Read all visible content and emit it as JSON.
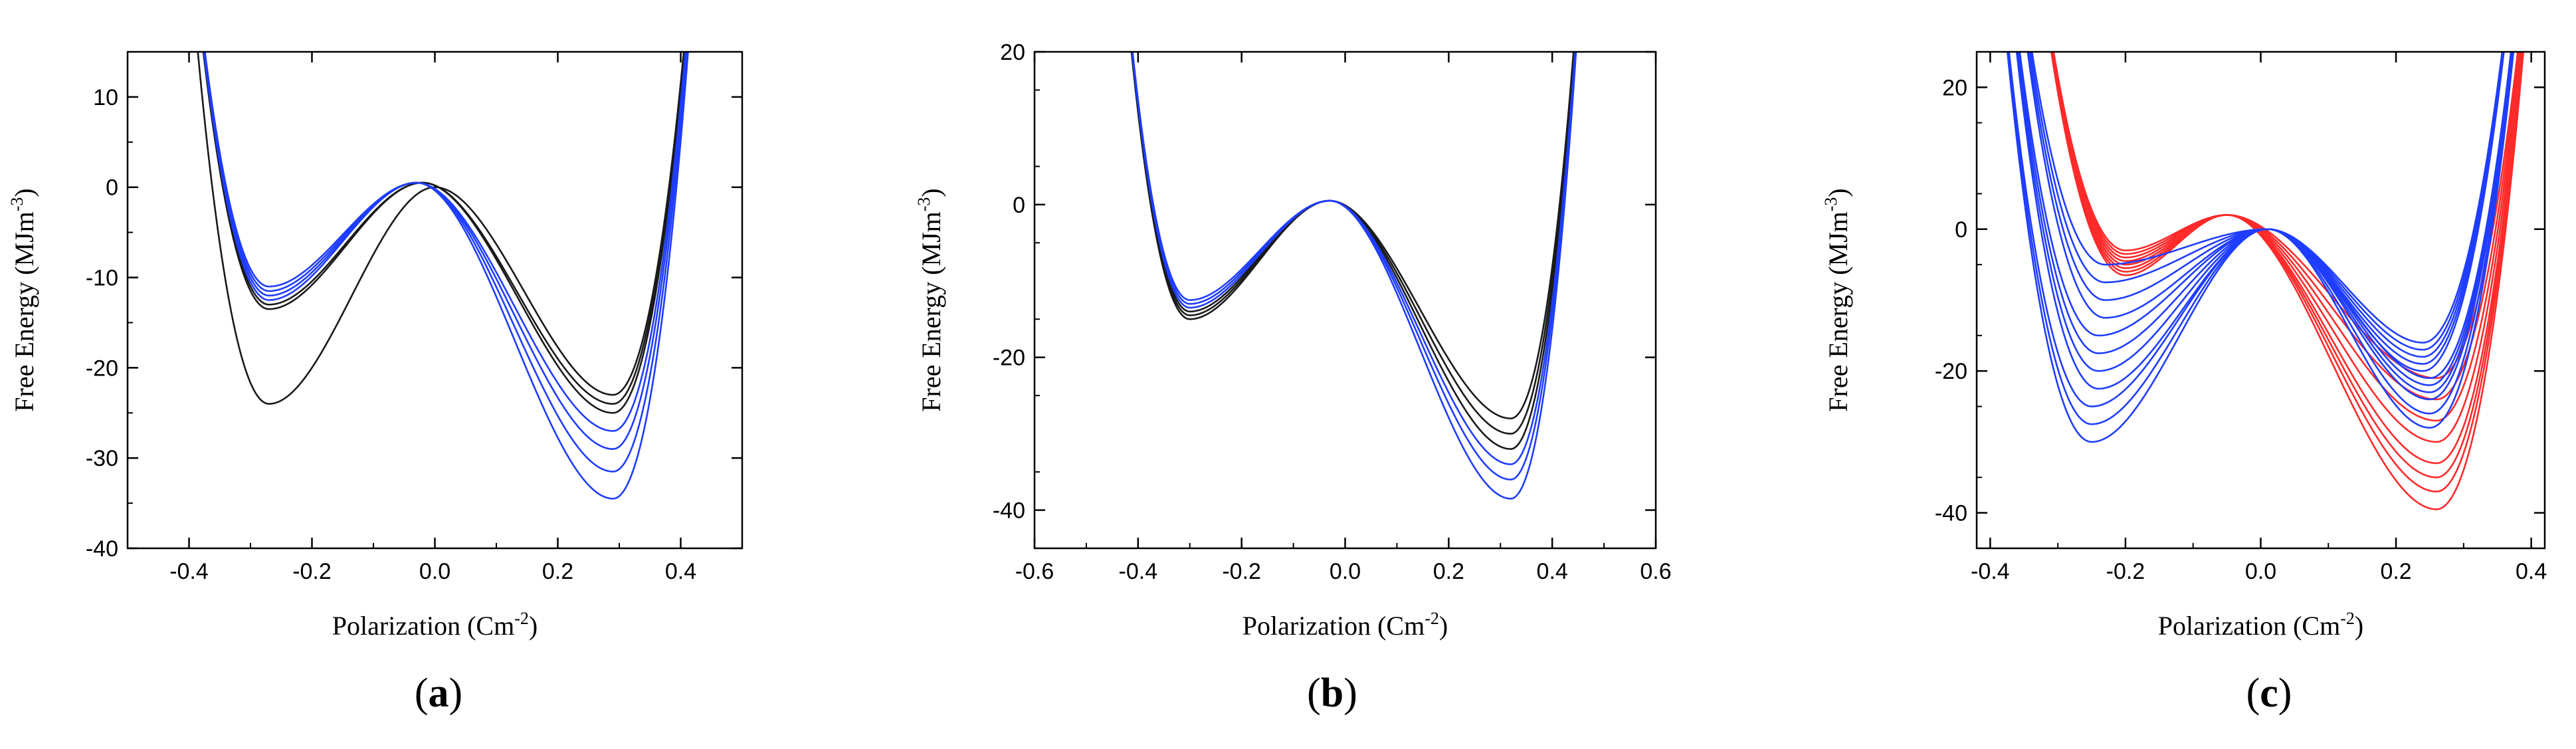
{
  "figure": {
    "panels": [
      "a",
      "b",
      "c"
    ]
  },
  "chart_data": [
    {
      "type": "line",
      "panel_label": "a",
      "xlabel": "Polarization (Cm",
      "xlabel_sup": "-2",
      "xlabel_close": ")",
      "ylabel": "Free Energy (MJm",
      "ylabel_sup": "-3",
      "ylabel_close": ")",
      "xlim": [
        -0.5,
        0.5
      ],
      "ylim": [
        -40,
        15
      ],
      "xticks": [
        -0.4,
        -0.2,
        0.0,
        0.2,
        0.4
      ],
      "xtick_labels": [
        "-0.4",
        "-0.2",
        "0.0",
        "0.2",
        "0.4"
      ],
      "yticks": [
        10,
        0,
        -10,
        -20,
        -30,
        -40
      ],
      "ytick_labels": [
        "10",
        "0",
        "-10",
        "-20",
        "-30",
        "-40"
      ],
      "colors": {
        "dark": "#1a1a1a",
        "blue": "#1f3dff"
      },
      "model": "landau_quartic",
      "series": [
        {
          "name": "curve-1",
          "color_key": "dark",
          "left_min": [
            -0.27,
            -24
          ],
          "right_min": [
            0.29,
            -23
          ],
          "barrier": [
            0.0,
            0
          ]
        },
        {
          "name": "curve-2",
          "color_key": "dark",
          "left_min": [
            -0.27,
            -13.5
          ],
          "right_min": [
            0.29,
            -24
          ],
          "barrier": [
            -0.02,
            0.5
          ]
        },
        {
          "name": "curve-3",
          "color_key": "dark",
          "left_min": [
            -0.27,
            -13
          ],
          "right_min": [
            0.29,
            -25
          ],
          "barrier": [
            -0.02,
            0.5
          ]
        },
        {
          "name": "curve-4",
          "color_key": "blue",
          "left_min": [
            -0.27,
            -12.5
          ],
          "right_min": [
            0.29,
            -27
          ],
          "barrier": [
            -0.03,
            0.5
          ]
        },
        {
          "name": "curve-5",
          "color_key": "blue",
          "left_min": [
            -0.27,
            -12
          ],
          "right_min": [
            0.29,
            -29
          ],
          "barrier": [
            -0.03,
            0.5
          ]
        },
        {
          "name": "curve-6",
          "color_key": "blue",
          "left_min": [
            -0.27,
            -11.5
          ],
          "right_min": [
            0.29,
            -31.5
          ],
          "barrier": [
            -0.03,
            0.5
          ]
        },
        {
          "name": "curve-7",
          "color_key": "blue",
          "left_min": [
            -0.27,
            -11
          ],
          "right_min": [
            0.29,
            -34.5
          ],
          "barrier": [
            -0.03,
            0.5
          ]
        }
      ]
    },
    {
      "type": "line",
      "panel_label": "b",
      "xlabel": "Polarization (Cm",
      "xlabel_sup": "-2",
      "xlabel_close": ")",
      "ylabel": "Free Energy (MJm",
      "ylabel_sup": "-3",
      "ylabel_close": ")",
      "xlim": [
        -0.6,
        0.6
      ],
      "ylim": [
        -45,
        20
      ],
      "xticks": [
        -0.6,
        -0.4,
        -0.2,
        0.0,
        0.2,
        0.4,
        0.6
      ],
      "xtick_labels": [
        "-0.6",
        "-0.4",
        "-0.2",
        "0.0",
        "0.2",
        "0.4",
        "0.6"
      ],
      "yticks": [
        20,
        0,
        -20,
        -40
      ],
      "ytick_labels": [
        "20",
        "0",
        "-20",
        "-40"
      ],
      "colors": {
        "dark": "#1a1a1a",
        "blue": "#1f3dff"
      },
      "model": "landau_quartic",
      "series": [
        {
          "name": "curve-1",
          "color_key": "dark",
          "left_min": [
            -0.3,
            -15
          ],
          "right_min": [
            0.32,
            -28
          ],
          "barrier": [
            -0.03,
            0.5
          ]
        },
        {
          "name": "curve-2",
          "color_key": "dark",
          "left_min": [
            -0.3,
            -14.5
          ],
          "right_min": [
            0.32,
            -30
          ],
          "barrier": [
            -0.03,
            0.5
          ]
        },
        {
          "name": "curve-3",
          "color_key": "dark",
          "left_min": [
            -0.3,
            -14
          ],
          "right_min": [
            0.32,
            -32
          ],
          "barrier": [
            -0.03,
            0.5
          ]
        },
        {
          "name": "curve-4",
          "color_key": "blue",
          "left_min": [
            -0.3,
            -13.5
          ],
          "right_min": [
            0.32,
            -34
          ],
          "barrier": [
            -0.03,
            0.5
          ]
        },
        {
          "name": "curve-5",
          "color_key": "blue",
          "left_min": [
            -0.3,
            -13
          ],
          "right_min": [
            0.32,
            -36
          ],
          "barrier": [
            -0.03,
            0.5
          ]
        },
        {
          "name": "curve-6",
          "color_key": "blue",
          "left_min": [
            -0.3,
            -12.5
          ],
          "right_min": [
            0.32,
            -38.5
          ],
          "barrier": [
            -0.03,
            0.5
          ]
        }
      ]
    },
    {
      "type": "line",
      "panel_label": "c",
      "xlabel": "Polarization (Cm",
      "xlabel_sup": "-2",
      "xlabel_close": ")",
      "ylabel": "Free Energy (MJm",
      "ylabel_sup": "-3",
      "ylabel_close": ")",
      "xlim": [
        -0.42,
        0.42
      ],
      "ylim": [
        -45,
        25
      ],
      "xticks": [
        -0.4,
        -0.2,
        0.0,
        0.2,
        0.4
      ],
      "xtick_labels": [
        "-0.4",
        "-0.2",
        "0.0",
        "0.2",
        "0.4"
      ],
      "yticks": [
        20,
        0,
        -20,
        -40
      ],
      "ytick_labels": [
        "20",
        "0",
        "-20",
        "-40"
      ],
      "colors": {
        "red": "#ff2a2a",
        "blue": "#1f3dff"
      },
      "model": "landau_quartic",
      "series": [
        {
          "name": "red-1",
          "color_key": "red",
          "left_min": [
            -0.2,
            -3
          ],
          "right_min": [
            0.26,
            -21
          ],
          "barrier": [
            -0.05,
            2
          ]
        },
        {
          "name": "red-2",
          "color_key": "red",
          "left_min": [
            -0.2,
            -3.5
          ],
          "right_min": [
            0.26,
            -24
          ],
          "barrier": [
            -0.05,
            2
          ]
        },
        {
          "name": "red-3",
          "color_key": "red",
          "left_min": [
            -0.2,
            -4
          ],
          "right_min": [
            0.26,
            -27
          ],
          "barrier": [
            -0.05,
            2
          ]
        },
        {
          "name": "red-4",
          "color_key": "red",
          "left_min": [
            -0.2,
            -4.5
          ],
          "right_min": [
            0.26,
            -30
          ],
          "barrier": [
            -0.05,
            2
          ]
        },
        {
          "name": "red-5",
          "color_key": "red",
          "left_min": [
            -0.2,
            -5
          ],
          "right_min": [
            0.26,
            -33
          ],
          "barrier": [
            -0.05,
            2
          ]
        },
        {
          "name": "red-6",
          "color_key": "red",
          "left_min": [
            -0.2,
            -5.5
          ],
          "right_min": [
            0.26,
            -35
          ],
          "barrier": [
            -0.05,
            2
          ]
        },
        {
          "name": "red-7",
          "color_key": "red",
          "left_min": [
            -0.2,
            -6
          ],
          "right_min": [
            0.26,
            -37
          ],
          "barrier": [
            -0.05,
            2
          ]
        },
        {
          "name": "red-8",
          "color_key": "red",
          "left_min": [
            -0.2,
            -6.5
          ],
          "right_min": [
            0.26,
            -39.5
          ],
          "barrier": [
            -0.05,
            2
          ]
        },
        {
          "name": "blue-1",
          "color_key": "blue",
          "left_min": [
            -0.23,
            -5
          ],
          "right_min": [
            0.24,
            -16
          ],
          "barrier": [
            0.01,
            0
          ]
        },
        {
          "name": "blue-2",
          "color_key": "blue",
          "left_min": [
            -0.23,
            -7.5
          ],
          "right_min": [
            0.24,
            -17
          ],
          "barrier": [
            0.01,
            0
          ]
        },
        {
          "name": "blue-3",
          "color_key": "blue",
          "left_min": [
            -0.23,
            -10
          ],
          "right_min": [
            0.24,
            -18
          ],
          "barrier": [
            0.01,
            0
          ]
        },
        {
          "name": "blue-4",
          "color_key": "blue",
          "left_min": [
            -0.23,
            -12.5
          ],
          "right_min": [
            0.24,
            -19
          ],
          "barrier": [
            0.01,
            0
          ]
        },
        {
          "name": "blue-5",
          "color_key": "blue",
          "left_min": [
            -0.24,
            -15
          ],
          "right_min": [
            0.24,
            -20
          ],
          "barrier": [
            0.01,
            0
          ]
        },
        {
          "name": "blue-6",
          "color_key": "blue",
          "left_min": [
            -0.24,
            -17.5
          ],
          "right_min": [
            0.25,
            -21
          ],
          "barrier": [
            0.01,
            0
          ]
        },
        {
          "name": "blue-7",
          "color_key": "blue",
          "left_min": [
            -0.24,
            -20
          ],
          "right_min": [
            0.25,
            -22
          ],
          "barrier": [
            0.01,
            0
          ]
        },
        {
          "name": "blue-8",
          "color_key": "blue",
          "left_min": [
            -0.24,
            -22.5
          ],
          "right_min": [
            0.25,
            -23
          ],
          "barrier": [
            0.01,
            0
          ]
        },
        {
          "name": "blue-9",
          "color_key": "blue",
          "left_min": [
            -0.25,
            -25
          ],
          "right_min": [
            0.25,
            -24
          ],
          "barrier": [
            0.01,
            0
          ]
        },
        {
          "name": "blue-10",
          "color_key": "blue",
          "left_min": [
            -0.25,
            -27.5
          ],
          "right_min": [
            0.25,
            -26
          ],
          "barrier": [
            0.01,
            0
          ]
        },
        {
          "name": "blue-11",
          "color_key": "blue",
          "left_min": [
            -0.25,
            -30
          ],
          "right_min": [
            0.25,
            -28
          ],
          "barrier": [
            0.01,
            0
          ]
        }
      ]
    }
  ]
}
